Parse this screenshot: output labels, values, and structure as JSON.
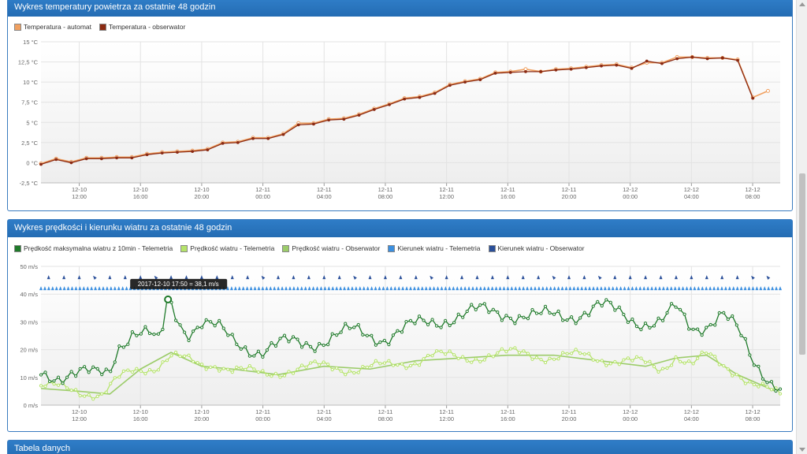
{
  "panels": {
    "temperature_title": "Wykres temperatury powietrza za ostatnie 48 godzin",
    "wind_title": "Wykres prędkości i kierunku wiatru za ostatnie 48 godzin",
    "table_title": "Tabela danych"
  },
  "tooltip": {
    "text": "2017-12-10 17:50 = 38,1 m/s"
  },
  "colors": {
    "temp_auto": "#f0a060",
    "temp_obs": "#8b2a12",
    "wind_max": "#1f7a2a",
    "wind_tele": "#b5e36a",
    "wind_obs": "#9ccc6a",
    "dir_tele": "#3b8fe0",
    "dir_obs": "#2a4f99",
    "header": "#2a72ba"
  },
  "chart_data": [
    {
      "type": "line",
      "series": [
        {
          "name": "Temperatura - automat",
          "values": [
            -0.1,
            0.5,
            0.1,
            0.6,
            0.6,
            0.7,
            0.7,
            1.1,
            1.3,
            1.4,
            1.5,
            1.7,
            2.5,
            2.6,
            3.1,
            3.1,
            3.6,
            4.9,
            4.9,
            5.4,
            5.5,
            6.0,
            6.7,
            7.3,
            8.0,
            8.2,
            8.7,
            9.7,
            10.1,
            10.4,
            11.2,
            11.3,
            11.6,
            11.3,
            11.6,
            11.7,
            11.9,
            12.1,
            12.2,
            11.8,
            12.4,
            12.4,
            13.1,
            13.1,
            13.0,
            13.0,
            12.8,
            8.1,
            8.9
          ]
        },
        {
          "name": "Temperatura - obserwator",
          "values": [
            -0.2,
            0.4,
            0.0,
            0.5,
            0.5,
            0.6,
            0.6,
            1.0,
            1.2,
            1.3,
            1.4,
            1.6,
            2.4,
            2.5,
            3.0,
            3.0,
            3.5,
            4.7,
            4.8,
            5.3,
            5.4,
            5.9,
            6.6,
            7.2,
            7.9,
            8.1,
            8.6,
            9.6,
            10.0,
            10.3,
            11.1,
            11.2,
            11.3,
            11.3,
            11.5,
            11.6,
            11.8,
            12.0,
            12.1,
            11.7,
            12.6,
            12.3,
            12.9,
            13.1,
            12.9,
            13.0,
            12.7,
            8.0
          ]
        }
      ],
      "ylabels": [
        "-2,5 °C",
        "0 °C",
        "2,5 °C",
        "5 °C",
        "7,5 °C",
        "10 °C",
        "12,5 °C",
        "15 °C"
      ],
      "ylim": [
        -2.5,
        15
      ],
      "xticks": [
        [
          "12-10",
          "12:00"
        ],
        [
          "12-10",
          "16:00"
        ],
        [
          "12-10",
          "20:00"
        ],
        [
          "12-11",
          "00:00"
        ],
        [
          "12-11",
          "04:00"
        ],
        [
          "12-11",
          "08:00"
        ],
        [
          "12-11",
          "12:00"
        ],
        [
          "12-11",
          "16:00"
        ],
        [
          "12-11",
          "20:00"
        ],
        [
          "12-12",
          "00:00"
        ],
        [
          "12-12",
          "04:00"
        ],
        [
          "12-12",
          "08:00"
        ]
      ],
      "xrange_hours": [
        9.5,
        57.8
      ],
      "grid": true
    },
    {
      "type": "line",
      "series": [
        {
          "name": "Prędkość maksymalna wiatru z 10min - Telemetria"
        },
        {
          "name": "Prędkość wiatru - Telemetria"
        },
        {
          "name": "Prędkość wiatru - Obserwator"
        },
        {
          "name": "Kierunek wiatru - Telemetria"
        },
        {
          "name": "Kierunek wiatru - Obserwator"
        }
      ],
      "ylabels": [
        "0 m/s",
        "10 m/s",
        "20 m/s",
        "30 m/s",
        "40 m/s",
        "50 m/s"
      ],
      "ylim": [
        0,
        50
      ],
      "xticks": [
        [
          "12-10",
          "12:00"
        ],
        [
          "12-10",
          "16:00"
        ],
        [
          "12-10",
          "20:00"
        ],
        [
          "12-11",
          "00:00"
        ],
        [
          "12-11",
          "04:00"
        ],
        [
          "12-11",
          "08:00"
        ],
        [
          "12-11",
          "12:00"
        ],
        [
          "12-11",
          "16:00"
        ],
        [
          "12-11",
          "20:00"
        ],
        [
          "12-12",
          "00:00"
        ],
        [
          "12-12",
          "04:00"
        ],
        [
          "12-12",
          "08:00"
        ]
      ],
      "xrange_hours": [
        9.5,
        57.8
      ],
      "gust_profile": [
        [
          9.5,
          11
        ],
        [
          11.5,
          12
        ],
        [
          13,
          10
        ],
        [
          14,
          12
        ],
        [
          14.5,
          22
        ],
        [
          15.5,
          27
        ],
        [
          16.5,
          25
        ],
        [
          17.3,
          21
        ],
        [
          17.8,
          38.1
        ],
        [
          18.3,
          33
        ],
        [
          19,
          27
        ],
        [
          20,
          30
        ],
        [
          21,
          27
        ],
        [
          22,
          23
        ],
        [
          24,
          20
        ],
        [
          26,
          22
        ],
        [
          28,
          24
        ],
        [
          30,
          26
        ],
        [
          32,
          25
        ],
        [
          34,
          28
        ],
        [
          36,
          32
        ],
        [
          38,
          33
        ],
        [
          40,
          34
        ],
        [
          42,
          31
        ],
        [
          44,
          33
        ],
        [
          46,
          35
        ],
        [
          48,
          32
        ],
        [
          50,
          29
        ],
        [
          51,
          34
        ],
        [
          52,
          28
        ],
        [
          53,
          30
        ],
        [
          54,
          33
        ],
        [
          55,
          26
        ],
        [
          56,
          16
        ],
        [
          57,
          11
        ],
        [
          57.8,
          7
        ]
      ],
      "wind_profile": [
        [
          9.5,
          7
        ],
        [
          12,
          5
        ],
        [
          13.5,
          4
        ],
        [
          14.5,
          9
        ],
        [
          15.5,
          12
        ],
        [
          17,
          14
        ],
        [
          18,
          18
        ],
        [
          19,
          16
        ],
        [
          20,
          14
        ],
        [
          21,
          15
        ],
        [
          22,
          13
        ],
        [
          24,
          11
        ],
        [
          26,
          13
        ],
        [
          28,
          14
        ],
        [
          30,
          13
        ],
        [
          32,
          14
        ],
        [
          34,
          16
        ],
        [
          35,
          18
        ],
        [
          37,
          17
        ],
        [
          39,
          18
        ],
        [
          41,
          19
        ],
        [
          43,
          17
        ],
        [
          45,
          18
        ],
        [
          47,
          16
        ],
        [
          49,
          15
        ],
        [
          50,
          13
        ],
        [
          51,
          18
        ],
        [
          52,
          14
        ],
        [
          53,
          18
        ],
        [
          54,
          15
        ],
        [
          55,
          12
        ],
        [
          56,
          7
        ],
        [
          57,
          5
        ],
        [
          57.8,
          4
        ]
      ],
      "obs_wind_profile": [
        [
          9.5,
          6
        ],
        [
          12,
          5
        ],
        [
          14,
          4
        ],
        [
          16,
          13
        ],
        [
          18,
          19
        ],
        [
          20,
          14
        ],
        [
          22,
          13
        ],
        [
          25,
          11
        ],
        [
          28,
          14
        ],
        [
          31,
          13
        ],
        [
          34,
          16
        ],
        [
          37,
          17
        ],
        [
          40,
          18
        ],
        [
          43,
          18
        ],
        [
          46,
          16
        ],
        [
          49,
          14
        ],
        [
          51,
          17
        ],
        [
          53,
          18
        ],
        [
          55,
          11
        ],
        [
          57.5,
          5
        ]
      ],
      "direction_level": 42,
      "obs_direction_level": 46
    }
  ]
}
